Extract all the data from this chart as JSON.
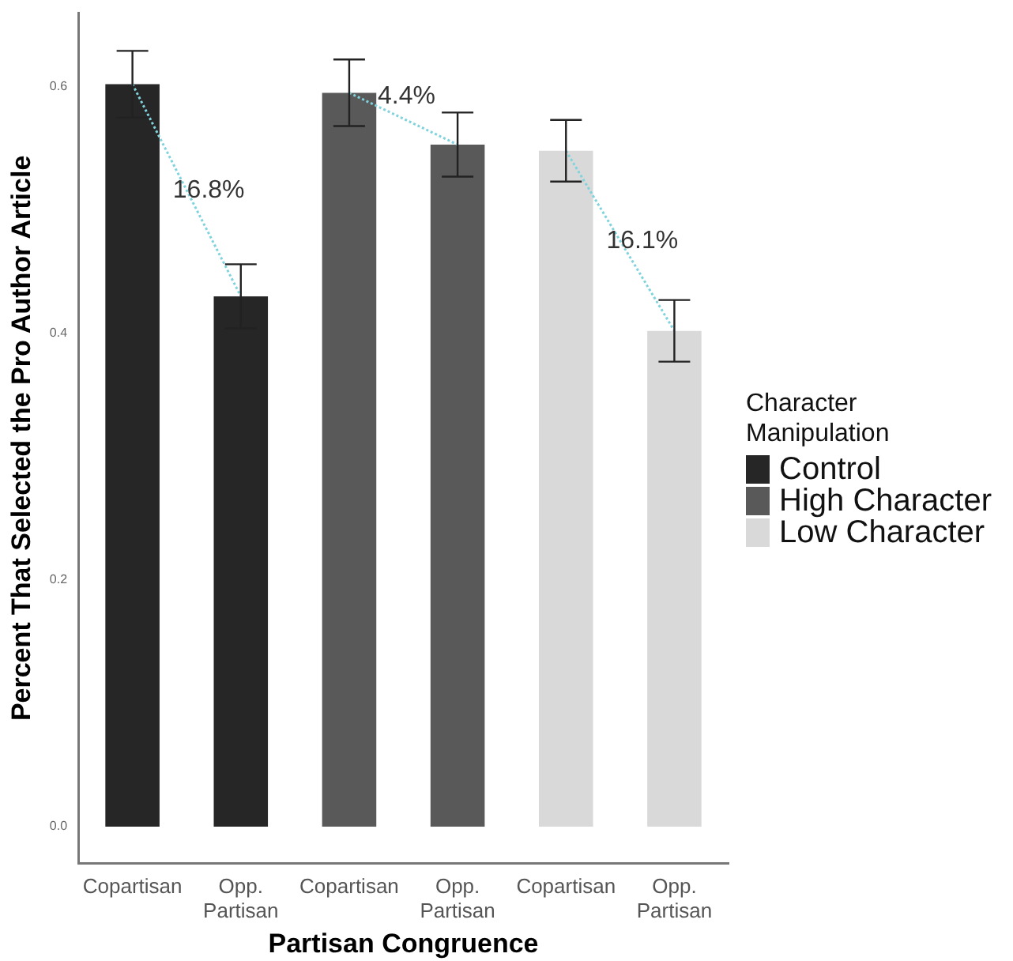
{
  "chart_data": {
    "type": "bar",
    "xlabel": "Partisan Congruence",
    "ylabel": "Percent That Selected the Pro Author Article",
    "legend_title": "Character Manipulation",
    "categories": [
      "Copartisan",
      "Opp.\nPartisan",
      "Copartisan",
      "Opp.\nPartisan",
      "Copartisan",
      "Opp.\nPartisan"
    ],
    "series": [
      {
        "name": "Control",
        "color": "#262626",
        "values": [
          0.602,
          0.43,
          null,
          null,
          null,
          null
        ],
        "errors": [
          0.027,
          0.026,
          null,
          null,
          null,
          null
        ]
      },
      {
        "name": "High Character",
        "color": "#595959",
        "values": [
          null,
          null,
          0.595,
          0.553,
          null,
          null
        ],
        "errors": [
          null,
          null,
          0.027,
          0.026,
          null,
          null
        ]
      },
      {
        "name": "Low Character",
        "color": "#d9d9d9",
        "values": [
          null,
          null,
          null,
          null,
          0.548,
          0.402
        ],
        "errors": [
          null,
          null,
          null,
          null,
          0.025,
          0.025
        ]
      },
      {
        "type": "line",
        "color": "#7fd3dc",
        "line_style": "dotted",
        "marker": "none",
        "values": [
          0.602,
          0.43,
          null,
          null,
          null,
          null
        ]
      },
      {
        "type": "line",
        "color": "#7fd3dc",
        "line_style": "dotted",
        "marker": "none",
        "values": [
          null,
          null,
          0.595,
          0.553,
          null,
          null
        ]
      },
      {
        "type": "line",
        "color": "#7fd3dc",
        "line_style": "dotted",
        "marker": "none",
        "values": [
          null,
          null,
          null,
          null,
          0.548,
          0.402
        ]
      }
    ],
    "annotations": [
      "16.8%",
      "4.4%",
      "16.1%"
    ],
    "ylim": [
      -0.03,
      0.66
    ],
    "yticks": [
      {
        "value": 0,
        "label": "0.0"
      },
      {
        "value": 0.2,
        "label": "0.2"
      },
      {
        "value": 0.4,
        "label": "0.4"
      },
      {
        "value": 0.6,
        "label": "0.6"
      }
    ],
    "grid": false,
    "legend": "right"
  }
}
